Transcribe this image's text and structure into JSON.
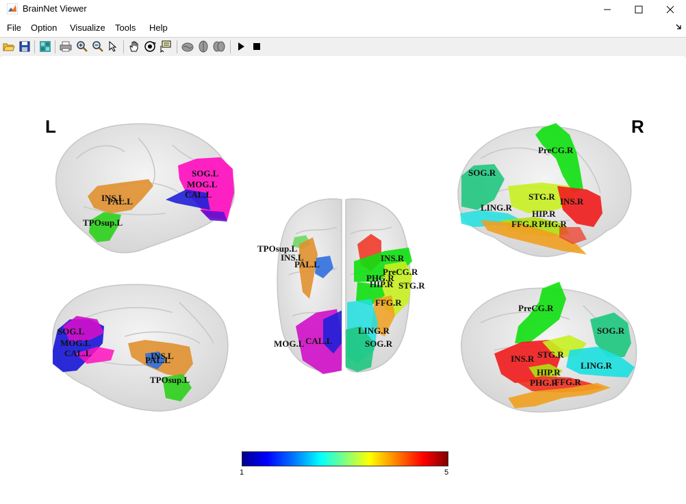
{
  "window": {
    "title": "BrainNet Viewer"
  },
  "menu": [
    "File",
    "Option",
    "Visualize",
    "Tools",
    "Help"
  ],
  "toolbar": [
    "open-icon",
    "save-icon",
    "colormap-icon",
    "print-icon",
    "zoom-in-icon",
    "zoom-out-icon",
    "select-arrow-icon",
    "pan-hand-icon",
    "rotate-3d-icon",
    "data-cursor-icon",
    "brain-lateral-icon",
    "brain-dorsal-icon",
    "brain-medial-icon",
    "play-icon",
    "stop-icon"
  ],
  "figure": {
    "left_label": "L",
    "right_label": "R",
    "colorbar": {
      "min": "1",
      "max": "5",
      "colormap": "jet"
    },
    "views": {
      "left_lateral": [
        "SOG.L",
        "MOG.L",
        "CAL.L",
        "INS.L",
        "PAL.L",
        "TPOsup.L"
      ],
      "left_medial": [
        "SOG.L",
        "MOG.L",
        "CAL.L",
        "INS.L",
        "PAL.L",
        "TPOsup.L"
      ],
      "dorsal": [
        "TPOsup.L",
        "INS.L",
        "PAL.L",
        "INS.R",
        "PreCG.R",
        "PHG.R",
        "HIP.R",
        "STG.R",
        "FFG.R",
        "LING.R",
        "SOG.R",
        "MOG.L",
        "CAL.L"
      ],
      "right_lateral": [
        "PreCG.R",
        "SOG.R",
        "STG.R",
        "INS.R",
        "LING.R",
        "HIP.R",
        "FFG.R",
        "PHG.R"
      ],
      "right_medial": [
        "PreCG.R",
        "SOG.R",
        "INS.R",
        "STG.R",
        "LING.R",
        "HIP.R",
        "PHG.R",
        "FFG.R"
      ]
    }
  },
  "colors": {
    "SOG": "#d010c8",
    "MOG": "#ff10c0",
    "CAL": "#1010d8",
    "INS": "#e09030",
    "PAL": "#3070e0",
    "TPOsup": "#30d020",
    "PreCG": "#10e010",
    "STG": "#c8f020",
    "HIP": "#b0e010",
    "FFG": "#f0a020",
    "PHG": "#f03020",
    "LING": "#20e0e0",
    "SOGR": "#20c880",
    "INSR": "#f02020"
  }
}
